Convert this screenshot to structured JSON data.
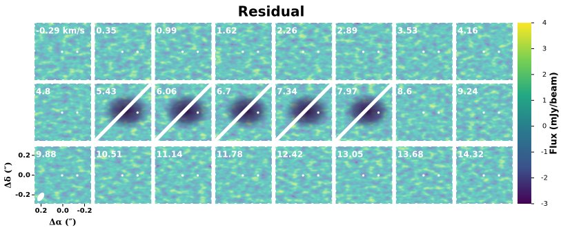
{
  "chart_data": {
    "type": "channel_map",
    "title": "Residual",
    "panels": [
      "-0.29 km/s",
      "0.35",
      "0.99",
      "1.62",
      "2.26",
      "2.89",
      "3.53",
      "4.16",
      "4.8",
      "5.43",
      "6.06",
      "6.7",
      "7.34",
      "7.97",
      "8.6",
      "9.24",
      "9.88",
      "10.51",
      "11.14",
      "11.78",
      "12.42",
      "13.05",
      "13.68",
      "14.32"
    ],
    "xlabel": "Δα (″)",
    "ylabel": "Δδ (″)",
    "xlim": [
      0.26,
      -0.26
    ],
    "xticks": [
      0.2,
      {
        "value": 0,
        "label": "0.0"
      },
      -0.2
    ],
    "ylim": [
      -0.29,
      0.29
    ],
    "yticks": [
      0.2,
      {
        "value": 0,
        "label": "0.0"
      },
      -0.2
    ],
    "colorbar": {
      "label": "Flux (mJy/beam)",
      "lim": [
        -3,
        4
      ],
      "ticks": [
        -3,
        -2,
        -1,
        0,
        1,
        2,
        3,
        4
      ],
      "colormap": "viridis"
    }
  }
}
